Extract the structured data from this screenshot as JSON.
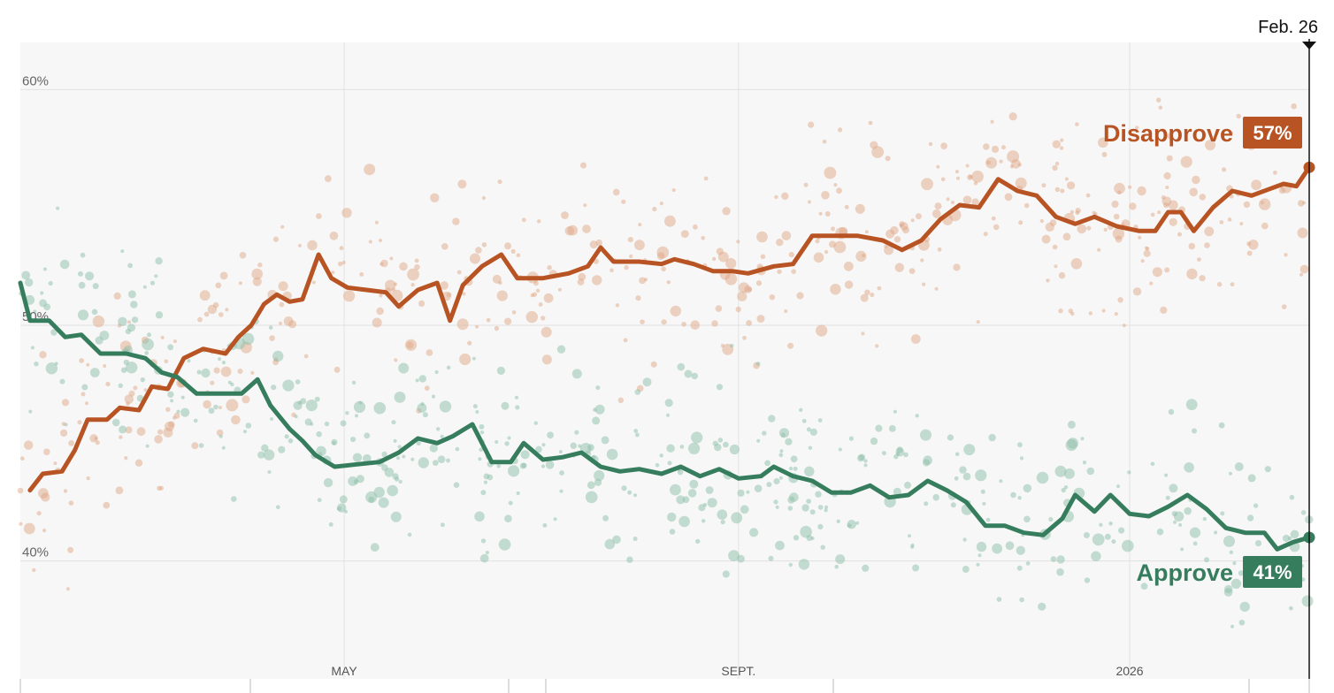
{
  "colors": {
    "approve": "#367d5e",
    "disapprove": "#b85423",
    "approve_dot": "#8dbfaa",
    "disapprove_dot": "#dfa888",
    "plot_bg": "#f7f7f7",
    "grid": "#e2e2e2"
  },
  "current_date_label": "Feb. 26",
  "chart_data": {
    "type": "line",
    "title": "",
    "xlabel": "",
    "ylabel": "",
    "ylim": [
      35,
      62
    ],
    "y_ticks": [
      {
        "value": 60,
        "label": "60%"
      },
      {
        "value": 50,
        "label": "50%"
      },
      {
        "value": 40,
        "label": "40%"
      }
    ],
    "x_range": [
      "2025-01-20",
      "2026-02-26"
    ],
    "x_ticks": [
      {
        "date": "2025-05-01",
        "label": "MAY"
      },
      {
        "date": "2025-09-01",
        "label": "SEPT."
      },
      {
        "date": "2026-01-01",
        "label": "2026"
      }
    ],
    "grid": true,
    "legend": "inline-right",
    "series": [
      {
        "key": "disapprove",
        "name": "Disapprove",
        "latest_label": "57%",
        "points": [
          [
            "2025-01-23",
            43.0
          ],
          [
            "2025-01-27",
            43.7
          ],
          [
            "2025-02-02",
            43.8
          ],
          [
            "2025-02-06",
            44.7
          ],
          [
            "2025-02-10",
            46.0
          ],
          [
            "2025-02-16",
            46.0
          ],
          [
            "2025-02-20",
            46.5
          ],
          [
            "2025-02-26",
            46.4
          ],
          [
            "2025-03-02",
            47.4
          ],
          [
            "2025-03-07",
            47.3
          ],
          [
            "2025-03-12",
            48.6
          ],
          [
            "2025-03-18",
            49.0
          ],
          [
            "2025-03-25",
            48.8
          ],
          [
            "2025-03-29",
            49.5
          ],
          [
            "2025-04-02",
            50.0
          ],
          [
            "2025-04-06",
            50.9
          ],
          [
            "2025-04-10",
            51.3
          ],
          [
            "2025-04-14",
            51.0
          ],
          [
            "2025-04-18",
            51.1
          ],
          [
            "2025-04-23",
            53.0
          ],
          [
            "2025-04-27",
            52.0
          ],
          [
            "2025-05-02",
            51.6
          ],
          [
            "2025-05-08",
            51.5
          ],
          [
            "2025-05-14",
            51.4
          ],
          [
            "2025-05-18",
            50.8
          ],
          [
            "2025-05-24",
            51.5
          ],
          [
            "2025-05-30",
            51.8
          ],
          [
            "2025-06-03",
            50.2
          ],
          [
            "2025-06-07",
            51.7
          ],
          [
            "2025-06-13",
            52.5
          ],
          [
            "2025-06-19",
            53.0
          ],
          [
            "2025-06-24",
            52.0
          ],
          [
            "2025-07-02",
            52.0
          ],
          [
            "2025-07-10",
            52.2
          ],
          [
            "2025-07-16",
            52.5
          ],
          [
            "2025-07-20",
            53.3
          ],
          [
            "2025-07-24",
            52.7
          ],
          [
            "2025-08-01",
            52.7
          ],
          [
            "2025-08-08",
            52.6
          ],
          [
            "2025-08-12",
            52.8
          ],
          [
            "2025-08-18",
            52.6
          ],
          [
            "2025-08-24",
            52.3
          ],
          [
            "2025-08-30",
            52.3
          ],
          [
            "2025-09-04",
            52.2
          ],
          [
            "2025-09-12",
            52.5
          ],
          [
            "2025-09-18",
            52.6
          ],
          [
            "2025-09-24",
            53.8
          ],
          [
            "2025-09-30",
            53.8
          ],
          [
            "2025-10-08",
            53.8
          ],
          [
            "2025-10-16",
            53.6
          ],
          [
            "2025-10-22",
            53.2
          ],
          [
            "2025-10-28",
            53.6
          ],
          [
            "2025-11-03",
            54.5
          ],
          [
            "2025-11-09",
            55.1
          ],
          [
            "2025-11-15",
            55.0
          ],
          [
            "2025-11-21",
            56.2
          ],
          [
            "2025-11-27",
            55.7
          ],
          [
            "2025-12-03",
            55.5
          ],
          [
            "2025-12-09",
            54.6
          ],
          [
            "2025-12-15",
            54.3
          ],
          [
            "2025-12-21",
            54.6
          ],
          [
            "2025-12-28",
            54.2
          ],
          [
            "2026-01-04",
            54.0
          ],
          [
            "2026-01-09",
            54.0
          ],
          [
            "2026-01-13",
            54.8
          ],
          [
            "2026-01-17",
            54.8
          ],
          [
            "2026-01-21",
            54.0
          ],
          [
            "2026-01-27",
            55.0
          ],
          [
            "2026-02-02",
            55.7
          ],
          [
            "2026-02-08",
            55.5
          ],
          [
            "2026-02-14",
            55.8
          ],
          [
            "2026-02-18",
            56.0
          ],
          [
            "2026-02-22",
            55.9
          ],
          [
            "2026-02-26",
            56.7
          ]
        ]
      },
      {
        "key": "approve",
        "name": "Approve",
        "latest_label": "41%",
        "points": [
          [
            "2025-01-20",
            51.8
          ],
          [
            "2025-01-23",
            50.2
          ],
          [
            "2025-01-29",
            50.2
          ],
          [
            "2025-02-03",
            49.5
          ],
          [
            "2025-02-08",
            49.6
          ],
          [
            "2025-02-14",
            48.8
          ],
          [
            "2025-02-22",
            48.8
          ],
          [
            "2025-02-28",
            48.6
          ],
          [
            "2025-03-05",
            48.0
          ],
          [
            "2025-03-10",
            47.8
          ],
          [
            "2025-03-16",
            47.1
          ],
          [
            "2025-03-24",
            47.1
          ],
          [
            "2025-03-30",
            47.1
          ],
          [
            "2025-04-04",
            47.7
          ],
          [
            "2025-04-08",
            46.6
          ],
          [
            "2025-04-14",
            45.6
          ],
          [
            "2025-04-18",
            45.1
          ],
          [
            "2025-04-22",
            44.5
          ],
          [
            "2025-04-28",
            44.0
          ],
          [
            "2025-05-05",
            44.1
          ],
          [
            "2025-05-12",
            44.2
          ],
          [
            "2025-05-18",
            44.6
          ],
          [
            "2025-05-24",
            45.2
          ],
          [
            "2025-05-30",
            45.0
          ],
          [
            "2025-06-04",
            45.3
          ],
          [
            "2025-06-10",
            45.8
          ],
          [
            "2025-06-16",
            44.2
          ],
          [
            "2025-06-22",
            44.2
          ],
          [
            "2025-06-26",
            45.0
          ],
          [
            "2025-07-02",
            44.3
          ],
          [
            "2025-07-08",
            44.4
          ],
          [
            "2025-07-14",
            44.6
          ],
          [
            "2025-07-20",
            44.0
          ],
          [
            "2025-07-26",
            43.8
          ],
          [
            "2025-08-01",
            43.9
          ],
          [
            "2025-08-08",
            43.7
          ],
          [
            "2025-08-14",
            44.0
          ],
          [
            "2025-08-20",
            43.6
          ],
          [
            "2025-08-26",
            43.9
          ],
          [
            "2025-09-01",
            43.5
          ],
          [
            "2025-09-08",
            43.6
          ],
          [
            "2025-09-12",
            44.0
          ],
          [
            "2025-09-18",
            43.6
          ],
          [
            "2025-09-24",
            43.4
          ],
          [
            "2025-09-30",
            42.9
          ],
          [
            "2025-10-06",
            42.9
          ],
          [
            "2025-10-12",
            43.2
          ],
          [
            "2025-10-18",
            42.7
          ],
          [
            "2025-10-24",
            42.8
          ],
          [
            "2025-10-30",
            43.4
          ],
          [
            "2025-11-05",
            43.0
          ],
          [
            "2025-11-11",
            42.5
          ],
          [
            "2025-11-17",
            41.5
          ],
          [
            "2025-11-23",
            41.5
          ],
          [
            "2025-11-29",
            41.2
          ],
          [
            "2025-12-05",
            41.1
          ],
          [
            "2025-12-11",
            41.8
          ],
          [
            "2025-12-15",
            42.8
          ],
          [
            "2025-12-21",
            42.1
          ],
          [
            "2025-12-26",
            42.8
          ],
          [
            "2026-01-01",
            42.0
          ],
          [
            "2026-01-07",
            41.9
          ],
          [
            "2026-01-13",
            42.3
          ],
          [
            "2026-01-19",
            42.8
          ],
          [
            "2026-01-25",
            42.2
          ],
          [
            "2026-01-31",
            41.4
          ],
          [
            "2026-02-06",
            41.2
          ],
          [
            "2026-02-12",
            41.2
          ],
          [
            "2026-02-16",
            40.5
          ],
          [
            "2026-02-21",
            40.8
          ],
          [
            "2026-02-26",
            41.0
          ]
        ]
      }
    ]
  }
}
